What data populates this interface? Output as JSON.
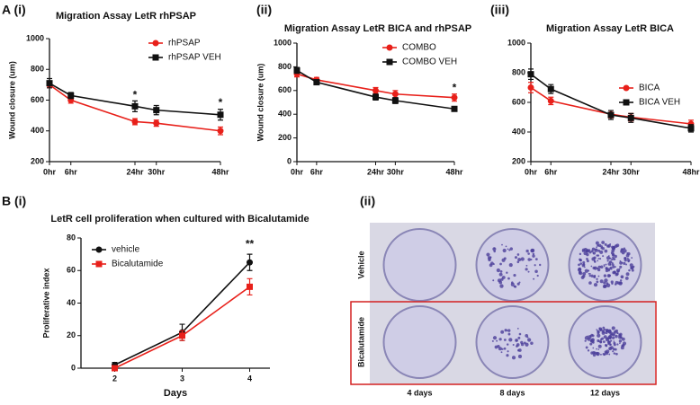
{
  "chart_data": [
    {
      "type": "line",
      "panel_label": "A (i)",
      "title": "Migration Assay LetR rhPSAP",
      "ylabel": "Wound closure (um)",
      "x": [
        0,
        6,
        24,
        30,
        48
      ],
      "xlim": [
        0,
        48
      ],
      "xticks": [
        {
          "value": 0,
          "label": "0hr"
        },
        {
          "value": 6,
          "label": "6hr"
        },
        {
          "value": 24,
          "label": "24hr"
        },
        {
          "value": 30,
          "label": "30hr"
        },
        {
          "value": 48,
          "label": "48hr"
        }
      ],
      "ylim": [
        200,
        1000
      ],
      "yticks": [
        200,
        400,
        600,
        800,
        1000
      ],
      "legend": "upper right",
      "series": [
        {
          "name": "rhPSAP",
          "color": "#e8201a",
          "marker": "circle",
          "values": [
            700,
            600,
            460,
            450,
            400
          ],
          "errors": [
            20,
            20,
            20,
            20,
            25
          ]
        },
        {
          "name": "rhPSAP VEH",
          "color": "#111111",
          "marker": "square",
          "values": [
            710,
            630,
            560,
            535,
            505
          ],
          "errors": [
            30,
            20,
            35,
            30,
            35
          ]
        }
      ],
      "annotations": [
        {
          "text": "*",
          "x": 24,
          "y": 630
        },
        {
          "text": "*",
          "x": 48,
          "y": 580
        }
      ]
    },
    {
      "type": "line",
      "panel_label": "(ii)",
      "title": "Migration Assay LetR BICA and rhPSAP",
      "ylabel": "Wound closure (um)",
      "x": [
        0,
        6,
        24,
        30,
        48
      ],
      "xlim": [
        0,
        48
      ],
      "xticks": [
        {
          "value": 0,
          "label": "0hr"
        },
        {
          "value": 6,
          "label": "6hr"
        },
        {
          "value": 24,
          "label": "24hr"
        },
        {
          "value": 30,
          "label": "30hr"
        },
        {
          "value": 48,
          "label": "48hr"
        }
      ],
      "ylim": [
        0,
        1000
      ],
      "yticks": [
        0,
        200,
        400,
        600,
        800,
        1000
      ],
      "legend": "upper right",
      "series": [
        {
          "name": "COMBO",
          "color": "#e8201a",
          "marker": "circle",
          "values": [
            740,
            690,
            600,
            570,
            540
          ],
          "errors": [
            25,
            20,
            25,
            30,
            30
          ]
        },
        {
          "name": "COMBO VEH",
          "color": "#111111",
          "marker": "square",
          "values": [
            770,
            670,
            545,
            515,
            445
          ],
          "errors": [
            25,
            20,
            25,
            25,
            20
          ]
        }
      ],
      "annotations": [
        {
          "text": "*",
          "x": 48,
          "y": 620
        }
      ]
    },
    {
      "type": "line",
      "panel_label": "(iii)",
      "title": "Migration Assay LetR BICA",
      "x": [
        0,
        6,
        24,
        30,
        48
      ],
      "xlim": [
        0,
        48
      ],
      "xticks": [
        {
          "value": 0,
          "label": "0hr"
        },
        {
          "value": 6,
          "label": "6hr"
        },
        {
          "value": 24,
          "label": "24hr"
        },
        {
          "value": 30,
          "label": "30hr"
        },
        {
          "value": 48,
          "label": "48hr"
        }
      ],
      "ylim": [
        200,
        1000
      ],
      "yticks": [
        200,
        400,
        600,
        800,
        1000
      ],
      "legend": "center right",
      "series": [
        {
          "name": "BICA",
          "color": "#e8201a",
          "marker": "circle",
          "values": [
            700,
            610,
            520,
            500,
            455
          ],
          "errors": [
            35,
            25,
            25,
            25,
            25
          ]
        },
        {
          "name": "BICA VEH",
          "color": "#111111",
          "marker": "square",
          "values": [
            790,
            690,
            515,
            495,
            425
          ],
          "errors": [
            35,
            30,
            30,
            30,
            25
          ]
        }
      ]
    },
    {
      "type": "line",
      "panel_label": "B (i)",
      "title": "LetR cell proliferation when cultured with Bicalutamide",
      "ylabel": "Proliferative index",
      "xlabel": "Days",
      "x": [
        2,
        3,
        4
      ],
      "xlim": [
        1.5,
        4.3
      ],
      "xticks": [
        2,
        3,
        4
      ],
      "ylim": [
        0,
        80
      ],
      "yticks": [
        0,
        20,
        40,
        60,
        80
      ],
      "legend": "upper left",
      "series": [
        {
          "name": "vehicle",
          "color": "#111111",
          "marker": "circle",
          "values": [
            2,
            22,
            65
          ],
          "errors": [
            1.5,
            5,
            5
          ]
        },
        {
          "name": "Bicalutamide",
          "color": "#e8201a",
          "marker": "square",
          "values": [
            0,
            20,
            50
          ],
          "errors": [
            1,
            3,
            5
          ]
        }
      ],
      "annotations": [
        {
          "text": "**",
          "x": 4,
          "y": 76
        }
      ]
    }
  ],
  "photo_panel": {
    "panel_label": "(ii)",
    "row_labels": [
      "Vehicle",
      "Bicalutamide"
    ],
    "column_labels": [
      "4 days",
      "8 days",
      "12 days"
    ]
  }
}
